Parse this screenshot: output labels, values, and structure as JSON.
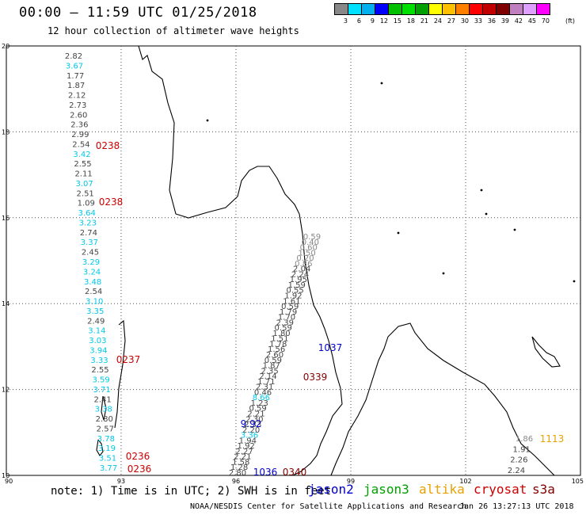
{
  "header": {
    "title": "00:00 — 11:59 UTC 01/25/2018",
    "subtitle": "12 hour collection of altimeter wave heights"
  },
  "colorbar": {
    "unit": "(ft)",
    "swatches": [
      "#888888",
      "#00e0ff",
      "#00b0f0",
      "#0000ff",
      "#00c000",
      "#00e000",
      "#00a000",
      "#ffff00",
      "#ffc000",
      "#ff8000",
      "#ff0000",
      "#c00000",
      "#800000",
      "#c080c0",
      "#e0a0ff",
      "#ff00ff"
    ],
    "labels": [
      "3",
      "6",
      "9",
      "12",
      "15",
      "18",
      "21",
      "24",
      "27",
      "30",
      "33",
      "36",
      "39",
      "42",
      "45",
      "70"
    ]
  },
  "axes": {
    "lon_ticks": [
      "90",
      "93",
      "96",
      "99",
      "102",
      "105"
    ],
    "lat_ticks": [
      "20",
      "18",
      "16",
      "14",
      "12",
      "10"
    ]
  },
  "colors": {
    "gray": "#444444",
    "cyan": "#00c8e8",
    "red": "#cc0000",
    "blue": "#0000c8",
    "darkred": "#800000",
    "orange": "#e8a000",
    "green": "#00a000",
    "lightgray": "#888888"
  },
  "observations": {
    "left_track": [
      {
        "v": "2.82",
        "c": "gray"
      },
      {
        "v": "3.67",
        "c": "cyan"
      },
      {
        "v": "1.77",
        "c": "gray"
      },
      {
        "v": "1.87",
        "c": "gray"
      },
      {
        "v": "2.12",
        "c": "gray"
      },
      {
        "v": "2.73",
        "c": "gray"
      },
      {
        "v": "2.60",
        "c": "gray"
      },
      {
        "v": "2.36",
        "c": "gray"
      },
      {
        "v": "2.99",
        "c": "gray"
      },
      {
        "v": "2.54",
        "c": "gray"
      },
      {
        "v": "3.42",
        "c": "cyan"
      },
      {
        "v": "2.55",
        "c": "gray"
      },
      {
        "v": "2.11",
        "c": "gray"
      },
      {
        "v": "3.07",
        "c": "cyan"
      },
      {
        "v": "2.51",
        "c": "gray"
      },
      {
        "v": "1.09",
        "c": "gray"
      },
      {
        "v": "3.64",
        "c": "cyan"
      },
      {
        "v": "3.23",
        "c": "cyan"
      },
      {
        "v": "2.74",
        "c": "gray"
      },
      {
        "v": "3.37",
        "c": "cyan"
      },
      {
        "v": "2.45",
        "c": "gray"
      },
      {
        "v": "3.29",
        "c": "cyan"
      },
      {
        "v": "3.24",
        "c": "cyan"
      },
      {
        "v": "3.48",
        "c": "cyan"
      },
      {
        "v": "2.54",
        "c": "gray"
      },
      {
        "v": "3.10",
        "c": "cyan"
      },
      {
        "v": "3.35",
        "c": "cyan"
      },
      {
        "v": "2.49",
        "c": "gray"
      },
      {
        "v": "3.14",
        "c": "cyan"
      },
      {
        "v": "3.03",
        "c": "cyan"
      },
      {
        "v": "3.94",
        "c": "cyan"
      },
      {
        "v": "3.33",
        "c": "cyan"
      },
      {
        "v": "2.55",
        "c": "gray"
      },
      {
        "v": "3.59",
        "c": "cyan"
      },
      {
        "v": "3.71",
        "c": "cyan"
      },
      {
        "v": "2.41",
        "c": "gray"
      },
      {
        "v": "3.38",
        "c": "cyan"
      },
      {
        "v": "2.80",
        "c": "gray"
      },
      {
        "v": "2.57",
        "c": "gray"
      },
      {
        "v": "3.78",
        "c": "cyan"
      },
      {
        "v": "3.19",
        "c": "cyan"
      },
      {
        "v": "3.51",
        "c": "cyan"
      },
      {
        "v": "3.77",
        "c": "cyan"
      }
    ],
    "left_times": [
      "0238",
      "0238",
      "0237",
      "0236",
      "0236"
    ],
    "right_track": [
      {
        "v": "0.59",
        "c": "lightgray"
      },
      {
        "v": "0.40",
        "c": "lightgray"
      },
      {
        "v": "0.60",
        "c": "lightgray"
      },
      {
        "v": "1.50",
        "c": "lightgray"
      },
      {
        "v": "0.20",
        "c": "lightgray"
      },
      {
        "v": "0.86",
        "c": "lightgray"
      },
      {
        "v": "2.04",
        "c": "gray"
      },
      {
        "v": "2.24",
        "c": "gray"
      },
      {
        "v": "1.95",
        "c": "gray"
      },
      {
        "v": "1.59",
        "c": "gray"
      },
      {
        "v": "0.55",
        "c": "gray"
      },
      {
        "v": "1.92",
        "c": "gray"
      },
      {
        "v": "1.61",
        "c": "gray"
      },
      {
        "v": "0.59",
        "c": "gray"
      },
      {
        "v": "1.79",
        "c": "gray"
      },
      {
        "v": "1.70",
        "c": "gray"
      },
      {
        "v": "2.39",
        "c": "gray"
      },
      {
        "v": "0.59",
        "c": "gray"
      },
      {
        "v": "1.80",
        "c": "gray"
      },
      {
        "v": "1.51",
        "c": "gray"
      },
      {
        "v": "1.78",
        "c": "gray"
      },
      {
        "v": "1.56",
        "c": "gray"
      },
      {
        "v": "2.60",
        "c": "gray"
      },
      {
        "v": "0.59",
        "c": "gray"
      },
      {
        "v": "1.87",
        "c": "gray"
      },
      {
        "v": "2.35",
        "c": "gray"
      },
      {
        "v": "2.14",
        "c": "gray"
      },
      {
        "v": "1.71",
        "c": "gray"
      },
      {
        "v": "2.31",
        "c": "gray"
      },
      {
        "v": "0.46",
        "c": "gray"
      },
      {
        "v": "8.66",
        "c": "cyan"
      },
      {
        "v": "1.23",
        "c": "gray"
      },
      {
        "v": "0.59",
        "c": "gray"
      },
      {
        "v": "2.21",
        "c": "gray"
      },
      {
        "v": "2.30",
        "c": "gray"
      },
      {
        "v": "2.33",
        "c": "gray"
      },
      {
        "v": "2.20",
        "c": "gray"
      },
      {
        "v": "3.36",
        "c": "cyan"
      },
      {
        "v": "1.94",
        "c": "gray"
      },
      {
        "v": "1.92",
        "c": "gray"
      },
      {
        "v": "2.27",
        "c": "gray"
      },
      {
        "v": "2.21",
        "c": "gray"
      },
      {
        "v": "1.58",
        "c": "gray"
      },
      {
        "v": "1.28",
        "c": "gray"
      },
      {
        "v": "2.80",
        "c": "gray"
      }
    ],
    "right_times": [
      {
        "v": "1037",
        "c": "blue"
      },
      {
        "v": "0339",
        "c": "darkred"
      },
      {
        "v": "9.92",
        "c": "blue"
      },
      {
        "v": "1036",
        "c": "blue"
      },
      {
        "v": "0340",
        "c": "darkred"
      }
    ],
    "east_track": [
      {
        "v": "1.86",
        "c": "lightgray"
      },
      {
        "v": "1.91",
        "c": "gray"
      },
      {
        "v": "2.26",
        "c": "gray"
      },
      {
        "v": "2.24",
        "c": "gray"
      }
    ],
    "east_time": {
      "v": "1113",
      "c": "orange"
    }
  },
  "footer": {
    "note": "note: 1) Time is in UTC; 2) SWH is in feet",
    "missions": [
      {
        "name": "jason2",
        "color": "#0000c8"
      },
      {
        "name": "jason3",
        "color": "#00a000"
      },
      {
        "name": "altika",
        "color": "#e8a000"
      },
      {
        "name": "cryosat",
        "color": "#cc0000"
      },
      {
        "name": "s3a",
        "color": "#800000"
      }
    ],
    "credit": "NOAA/NESDIS Center for Satellite Applications and Research",
    "timestamp": "Jan 26 13:27:13 UTC 2018"
  }
}
